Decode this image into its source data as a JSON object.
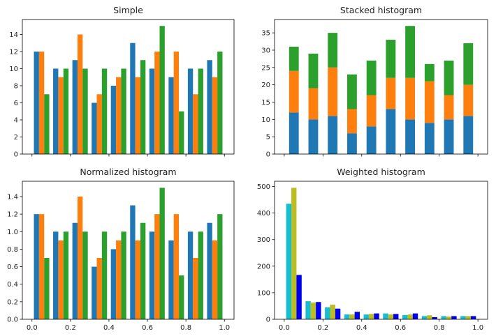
{
  "colors": {
    "c1": "#1f77b4",
    "c2": "#ff7f0e",
    "c3": "#2ca02c",
    "cyan": "#17becf",
    "olive": "#bcbd22",
    "blue": "#0000ee"
  },
  "chart_data": [
    {
      "type": "bar",
      "title": "Simple",
      "x": [
        0.05,
        0.15,
        0.25,
        0.35,
        0.45,
        0.55,
        0.65,
        0.75,
        0.85,
        0.95
      ],
      "series": [
        {
          "values": [
            12,
            10,
            11,
            6,
            8,
            13,
            10,
            9,
            10,
            11
          ]
        },
        {
          "values": [
            12,
            9,
            14,
            7,
            9,
            9,
            12,
            12,
            7,
            9
          ]
        },
        {
          "values": [
            7,
            10,
            10,
            10,
            10,
            11,
            15,
            5,
            10,
            12
          ]
        }
      ],
      "ylim": [
        0,
        15.75
      ],
      "yticks": [
        0,
        2,
        4,
        6,
        8,
        10,
        12,
        14
      ],
      "xlim": [
        -0.05,
        1.05
      ],
      "xticks": [
        0.0,
        0.2,
        0.4,
        0.6,
        0.8,
        1.0
      ],
      "xtick_labels_shown": false
    },
    {
      "type": "bar",
      "stacked": true,
      "title": "Stacked histogram",
      "x": [
        0.05,
        0.15,
        0.25,
        0.35,
        0.45,
        0.55,
        0.65,
        0.75,
        0.85,
        0.95
      ],
      "series": [
        {
          "values": [
            12,
            10,
            11,
            6,
            8,
            13,
            10,
            9,
            10,
            11
          ]
        },
        {
          "values": [
            12,
            9,
            14,
            7,
            9,
            9,
            12,
            12,
            7,
            9
          ]
        },
        {
          "values": [
            7,
            10,
            10,
            10,
            10,
            11,
            15,
            5,
            10,
            12
          ]
        }
      ],
      "ylim": [
        0,
        38.85
      ],
      "yticks": [
        0,
        5,
        10,
        15,
        20,
        25,
        30,
        35
      ],
      "xlim": [
        -0.05,
        1.05
      ],
      "xticks": [
        0.0,
        0.2,
        0.4,
        0.6,
        0.8,
        1.0
      ],
      "xtick_labels_shown": false
    },
    {
      "type": "bar",
      "title": "Normalized histogram",
      "x": [
        0.05,
        0.15,
        0.25,
        0.35,
        0.45,
        0.55,
        0.65,
        0.75,
        0.85,
        0.95
      ],
      "series": [
        {
          "values": [
            1.2,
            1.0,
            1.1,
            0.6,
            0.8,
            1.3,
            1.0,
            0.9,
            1.0,
            1.1
          ]
        },
        {
          "values": [
            1.2,
            0.9,
            1.4,
            0.7,
            0.9,
            0.9,
            1.2,
            1.2,
            0.7,
            0.9
          ]
        },
        {
          "values": [
            0.7,
            1.0,
            1.0,
            1.0,
            1.0,
            1.1,
            1.5,
            0.5,
            1.0,
            1.2
          ]
        }
      ],
      "ylim": [
        0,
        1.575
      ],
      "yticks": [
        0.0,
        0.2,
        0.4,
        0.6,
        0.8,
        1.0,
        1.2,
        1.4
      ],
      "xlim": [
        -0.05,
        1.05
      ],
      "xticks": [
        0.0,
        0.2,
        0.4,
        0.6,
        0.8,
        1.0
      ],
      "xtick_labels_shown": true
    },
    {
      "type": "bar",
      "title": "Weighted histogram",
      "x": [
        0.05,
        0.15,
        0.25,
        0.35,
        0.45,
        0.55,
        0.65,
        0.75,
        0.85,
        0.95
      ],
      "series": [
        {
          "values": [
            435,
            68,
            45,
            18,
            18,
            22,
            16,
            12,
            12,
            12
          ]
        },
        {
          "values": [
            495,
            63,
            55,
            18,
            20,
            18,
            18,
            15,
            10,
            12
          ]
        },
        {
          "values": [
            167,
            65,
            40,
            28,
            22,
            20,
            22,
            8,
            12,
            12
          ]
        }
      ],
      "ylim": [
        0,
        519.75
      ],
      "yticks": [
        0,
        100,
        200,
        300,
        400,
        500
      ],
      "xlim": [
        -0.05,
        1.05
      ],
      "xticks": [
        0.0,
        0.2,
        0.4,
        0.6,
        0.8,
        1.0
      ],
      "xtick_labels_shown": true
    }
  ]
}
